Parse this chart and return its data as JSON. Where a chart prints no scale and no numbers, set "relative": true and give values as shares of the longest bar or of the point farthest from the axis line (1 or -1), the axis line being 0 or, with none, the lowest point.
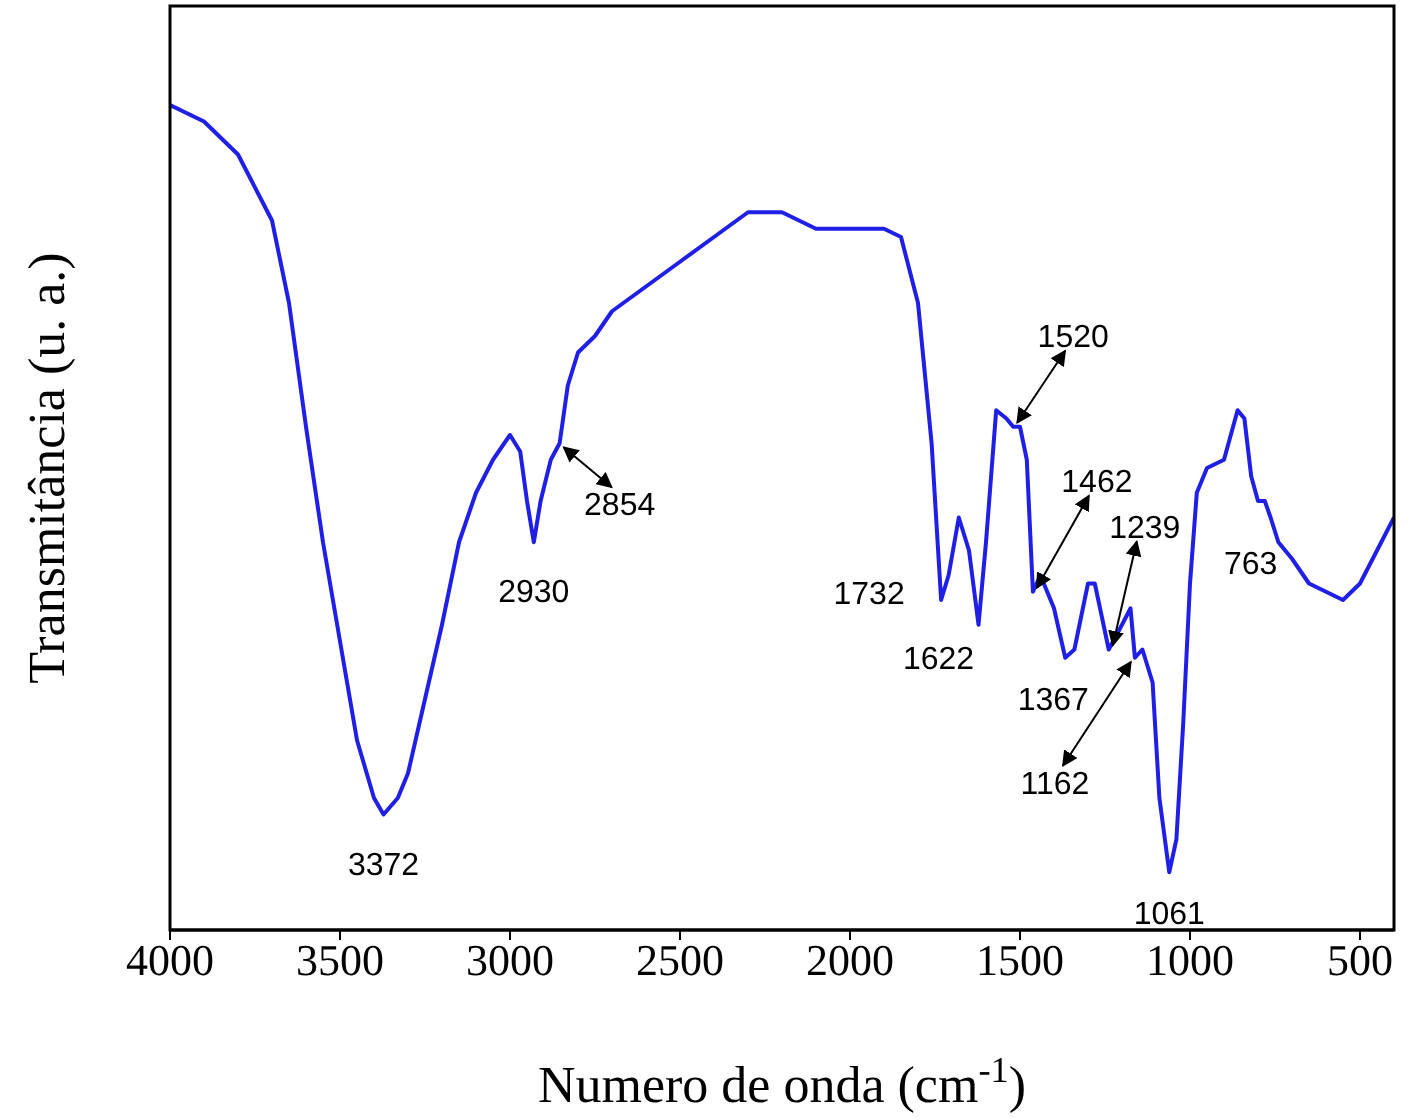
{
  "chart_data": {
    "type": "line",
    "relative": true,
    "xlabel": "Numero de onda (cm$^{-1}$)",
    "ylabel": "Transmitância (u. a.)",
    "xlim": [
      4000,
      400
    ],
    "xticks": [
      4000,
      3500,
      3000,
      2500,
      2000,
      1500,
      1000,
      500
    ],
    "marker": "none",
    "line_style": "solid",
    "x": [
      4000,
      3900,
      3800,
      3700,
      3650,
      3600,
      3550,
      3500,
      3450,
      3400,
      3372,
      3330,
      3300,
      3250,
      3200,
      3150,
      3100,
      3050,
      3000,
      2970,
      2950,
      2930,
      2910,
      2880,
      2854,
      2830,
      2800,
      2750,
      2700,
      2600,
      2500,
      2400,
      2300,
      2200,
      2100,
      2000,
      1900,
      1850,
      1800,
      1760,
      1732,
      1710,
      1680,
      1650,
      1622,
      1600,
      1570,
      1540,
      1520,
      1500,
      1480,
      1462,
      1440,
      1400,
      1367,
      1340,
      1300,
      1280,
      1239,
      1200,
      1175,
      1162,
      1140,
      1110,
      1090,
      1061,
      1040,
      1020,
      1000,
      980,
      950,
      900,
      860,
      840,
      820,
      800,
      780,
      763,
      740,
      700,
      650,
      600,
      550,
      500,
      450,
      400
    ],
    "series": [
      {
        "color": "#1f1fe6",
        "values": [
          1.0,
          0.98,
          0.94,
          0.86,
          0.76,
          0.61,
          0.47,
          0.35,
          0.23,
          0.16,
          0.14,
          0.16,
          0.19,
          0.28,
          0.37,
          0.47,
          0.53,
          0.57,
          0.6,
          0.58,
          0.52,
          0.47,
          0.52,
          0.57,
          0.59,
          0.66,
          0.7,
          0.72,
          0.75,
          0.78,
          0.81,
          0.84,
          0.87,
          0.87,
          0.85,
          0.85,
          0.85,
          0.84,
          0.76,
          0.59,
          0.4,
          0.43,
          0.5,
          0.46,
          0.37,
          0.47,
          0.63,
          0.62,
          0.61,
          0.61,
          0.57,
          0.41,
          0.43,
          0.39,
          0.33,
          0.34,
          0.42,
          0.42,
          0.34,
          0.37,
          0.39,
          0.33,
          0.34,
          0.3,
          0.16,
          0.07,
          0.11,
          0.25,
          0.42,
          0.53,
          0.56,
          0.57,
          0.63,
          0.62,
          0.55,
          0.52,
          0.52,
          0.5,
          0.47,
          0.45,
          0.42,
          0.41,
          0.4,
          0.42,
          0.46,
          0.5
        ]
      }
    ],
    "annotations": [
      {
        "text": "3372",
        "x": 3372,
        "y": 0.14
      },
      {
        "text": "2930",
        "x": 2930,
        "y": 0.47
      },
      {
        "text": "2854",
        "x": 2854,
        "y": 0.59
      },
      {
        "text": "1732",
        "x": 1732,
        "y": 0.4
      },
      {
        "text": "1622",
        "x": 1622,
        "y": 0.37
      },
      {
        "text": "1520",
        "x": 1520,
        "y": 0.61
      },
      {
        "text": "1462",
        "x": 1462,
        "y": 0.41
      },
      {
        "text": "1367",
        "x": 1367,
        "y": 0.33
      },
      {
        "text": "1239",
        "x": 1239,
        "y": 0.34
      },
      {
        "text": "1162",
        "x": 1162,
        "y": 0.33
      },
      {
        "text": "1061",
        "x": 1061,
        "y": 0.07
      },
      {
        "text": "763",
        "x": 763,
        "y": 0.5
      }
    ]
  }
}
